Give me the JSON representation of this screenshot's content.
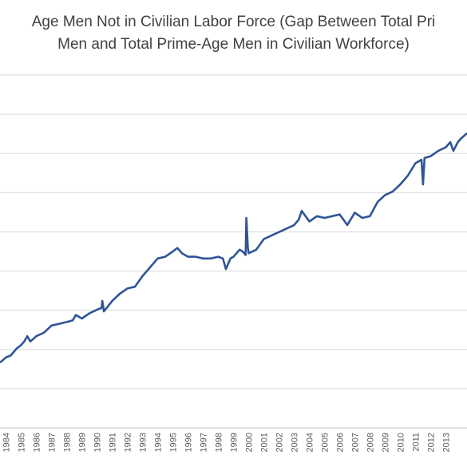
{
  "chart_data": {
    "type": "line",
    "title_line1": "Age Men Not in Civilian Labor Force (Gap Between Total Pri",
    "title_line2": "Men and Total Prime-Age Men in Civilian Workforce)",
    "xlabel": "",
    "ylabel": "",
    "x_tick_labels": [
      "1984",
      "1985",
      "1986",
      "1987",
      "1988",
      "1989",
      "1990",
      "1991",
      "1992",
      "1993",
      "1994",
      "1995",
      "1996",
      "1997",
      "1998",
      "1999",
      "2000",
      "2001",
      "2002",
      "2003",
      "2004",
      "2005",
      "2006",
      "2007",
      "2008",
      "2009",
      "2010",
      "2011",
      "2012",
      "2013"
    ],
    "xlim": [
      1983.6,
      2014.4
    ],
    "ylim": [
      0,
      10
    ],
    "gridlines": 9,
    "grid": true,
    "legend": "none",
    "series": [
      {
        "color": "#2F5597",
        "x": [
          1983.6,
          1984.0,
          1984.3,
          1984.7,
          1985.0,
          1985.2,
          1985.4,
          1985.6,
          1986.0,
          1986.5,
          1987.0,
          1987.5,
          1988.0,
          1988.4,
          1988.6,
          1989.0,
          1989.5,
          1990.0,
          1990.3,
          1990.35,
          1990.45,
          1991.0,
          1991.5,
          1992.0,
          1992.5,
          1993.0,
          1993.5,
          1994.0,
          1994.5,
          1995.0,
          1995.3,
          1995.6,
          1996.0,
          1996.5,
          1997.0,
          1997.5,
          1998.0,
          1998.3,
          1998.5,
          1998.8,
          1999.0,
          1999.4,
          1999.6,
          1999.8,
          1999.85,
          1999.95,
          2000.0,
          2000.5,
          2001.0,
          2001.5,
          2002.0,
          2002.5,
          2003.0,
          2003.3,
          2003.5,
          2004.0,
          2004.5,
          2005.0,
          2005.5,
          2006.0,
          2006.5,
          2007.0,
          2007.5,
          2008.0,
          2008.5,
          2009.0,
          2009.5,
          2010.0,
          2010.5,
          2011.0,
          2011.4,
          2011.5,
          2011.6,
          2012.0,
          2012.5,
          2013.0,
          2013.3,
          2013.5,
          2013.8,
          2014.0,
          2014.4
        ],
        "y": [
          1.85,
          2.0,
          2.05,
          2.25,
          2.35,
          2.45,
          2.6,
          2.45,
          2.6,
          2.7,
          2.9,
          2.95,
          3.0,
          3.05,
          3.2,
          3.1,
          3.25,
          3.35,
          3.4,
          3.6,
          3.3,
          3.6,
          3.8,
          3.95,
          4.0,
          4.3,
          4.55,
          4.8,
          4.85,
          5.0,
          5.1,
          4.95,
          4.85,
          4.85,
          4.8,
          4.8,
          4.85,
          4.8,
          4.5,
          4.8,
          4.85,
          5.05,
          5.0,
          4.9,
          5.95,
          5.1,
          4.95,
          5.05,
          5.35,
          5.45,
          5.55,
          5.65,
          5.75,
          5.9,
          6.15,
          5.85,
          6.0,
          5.95,
          6.0,
          6.05,
          5.75,
          6.1,
          5.95,
          6.0,
          6.4,
          6.6,
          6.7,
          6.9,
          7.15,
          7.5,
          7.6,
          6.9,
          7.65,
          7.7,
          7.85,
          7.95,
          8.1,
          7.85,
          8.1,
          8.2,
          8.35
        ]
      }
    ]
  }
}
